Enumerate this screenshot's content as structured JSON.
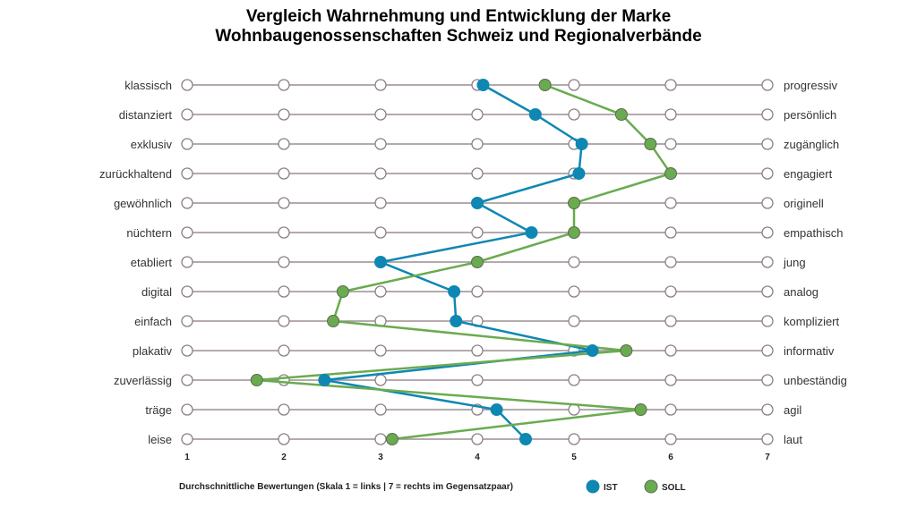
{
  "chart_data": {
    "type": "line",
    "title": [
      "Vergleich Wahrnehmung und Entwicklung der Marke",
      "Wohnbaugenossenschaften Schweiz und Regionalverbände"
    ],
    "xlabel": "Durchschnittliche Bewertungen (Skala 1 = links  |  7 = rechts im Gegensatzpaar)",
    "xlim": [
      1,
      7
    ],
    "x_ticks": [
      "1",
      "2",
      "3",
      "4",
      "5",
      "6",
      "7"
    ],
    "left_labels": [
      "klassisch",
      "distanziert",
      "exklusiv",
      "zurückhaltend",
      "gewöhnlich",
      "nüchtern",
      "etabliert",
      "digital",
      "einfach",
      "plakativ",
      "zuverlässig",
      "träge",
      "leise"
    ],
    "right_labels": [
      "progressiv",
      "persönlich",
      "zugänglich",
      "engagiert",
      "originell",
      "empathisch",
      "jung",
      "analog",
      "kompliziert",
      "informativ",
      "unbeständig",
      "agil",
      "laut"
    ],
    "legend_position": "bottom-right",
    "series": [
      {
        "name": "IST",
        "color": "#0e87b3",
        "values": [
          4.06,
          4.6,
          5.08,
          5.05,
          4.0,
          4.56,
          3.0,
          3.76,
          3.78,
          5.19,
          2.42,
          4.2,
          4.5
        ]
      },
      {
        "name": "SOLL",
        "color": "#6aab4f",
        "values": [
          4.7,
          5.49,
          5.79,
          6.0,
          5.0,
          5.0,
          4.0,
          2.61,
          2.51,
          5.54,
          1.72,
          5.69,
          3.12
        ]
      }
    ]
  }
}
